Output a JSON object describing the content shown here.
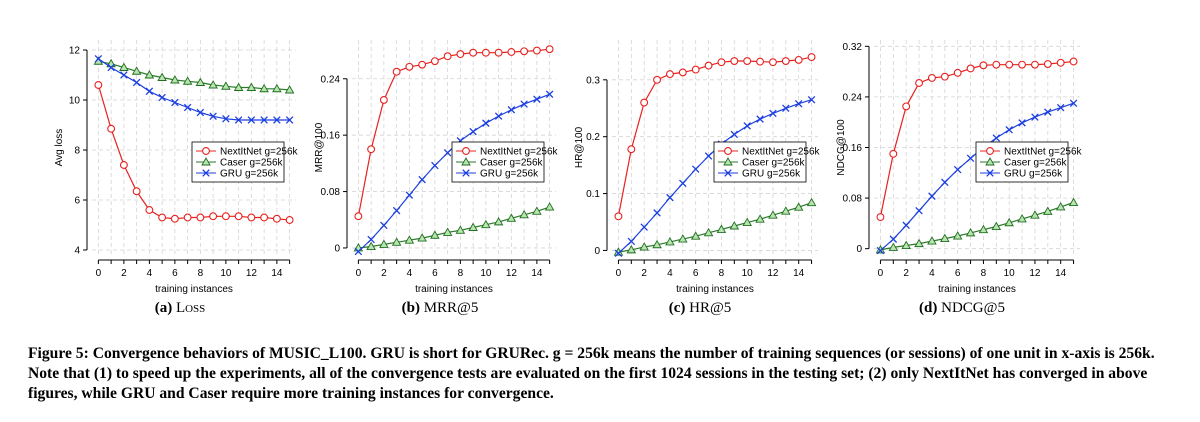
{
  "colors": {
    "nextitnet": "#e8211f",
    "caser": "#2f8a2f",
    "gru": "#1c3fe0"
  },
  "caption": {
    "label": "Figure 5:",
    "text": "Convergence behaviors of MUSIC_L100. GRU is short for GRURec. g = 256k means the number of training sequences (or sessions) of one unit in x-axis is 256k. Note that (1) to speed up the experiments, all of the convergence tests are evaluated on the first 1024 sessions in the testing set; (2) only NextItNet has converged in above figures, while GRU and Caser require more training instances for convergence."
  },
  "chart_data": [
    {
      "type": "line",
      "subcaption": {
        "label": "(a)",
        "name": "Loss"
      },
      "xlabel": "training instances",
      "ylabel": "Avg loss",
      "xlim": [
        -0.5,
        15.5
      ],
      "ylim": [
        3.8,
        12.4
      ],
      "xticks": [
        0,
        2,
        4,
        6,
        8,
        10,
        12,
        14
      ],
      "yticks": [
        4,
        6,
        8,
        10,
        12
      ],
      "x": [
        0,
        1,
        2,
        3,
        4,
        5,
        6,
        7,
        8,
        9,
        10,
        11,
        12,
        13,
        14,
        15
      ],
      "legend_position": "center-right",
      "series": [
        {
          "name": "NextItNet g=256k",
          "marker": "circle",
          "color": "#e8211f",
          "values": [
            10.6,
            8.85,
            7.4,
            6.35,
            5.6,
            5.3,
            5.25,
            5.3,
            5.3,
            5.35,
            5.35,
            5.35,
            5.3,
            5.3,
            5.25,
            5.2
          ]
        },
        {
          "name": "Caser g=256k",
          "marker": "triangle",
          "color": "#2f8a2f",
          "values": [
            11.55,
            11.45,
            11.3,
            11.15,
            11.0,
            10.9,
            10.8,
            10.75,
            10.7,
            10.6,
            10.55,
            10.5,
            10.5,
            10.45,
            10.45,
            10.4
          ]
        },
        {
          "name": "GRU  g=256k",
          "marker": "x",
          "color": "#1c3fe0",
          "values": [
            11.65,
            11.3,
            11.0,
            10.7,
            10.35,
            10.1,
            9.9,
            9.7,
            9.5,
            9.35,
            9.25,
            9.2,
            9.2,
            9.2,
            9.2,
            9.2
          ]
        }
      ]
    },
    {
      "type": "line",
      "subcaption": {
        "label": "(b)",
        "name": "MRR@5"
      },
      "xlabel": "training instances",
      "ylabel": "MRR@100",
      "xlim": [
        -0.5,
        15.5
      ],
      "ylim": [
        -0.01,
        0.295
      ],
      "xticks": [
        0,
        2,
        4,
        6,
        8,
        10,
        12,
        14
      ],
      "yticks": [
        0,
        0.08,
        0.16,
        0.24
      ],
      "ytick_labels": [
        "0",
        "0.08",
        "0.16",
        "0.24"
      ],
      "x": [
        0,
        1,
        2,
        3,
        4,
        5,
        6,
        7,
        8,
        9,
        10,
        11,
        12,
        13,
        14,
        15
      ],
      "legend_position": "center-right",
      "series": [
        {
          "name": "NextItNet g=256k",
          "marker": "circle",
          "color": "#e8211f",
          "values": [
            0.045,
            0.14,
            0.21,
            0.25,
            0.257,
            0.26,
            0.265,
            0.272,
            0.275,
            0.277,
            0.277,
            0.277,
            0.278,
            0.279,
            0.28,
            0.282
          ]
        },
        {
          "name": "Caser g=256k",
          "marker": "triangle",
          "color": "#2f8a2f",
          "values": [
            0.0,
            0.002,
            0.005,
            0.008,
            0.011,
            0.014,
            0.018,
            0.022,
            0.025,
            0.029,
            0.033,
            0.037,
            0.042,
            0.047,
            0.052,
            0.058
          ]
        },
        {
          "name": "GRU  g=256k",
          "marker": "x",
          "color": "#1c3fe0",
          "values": [
            -0.005,
            0.012,
            0.032,
            0.053,
            0.075,
            0.097,
            0.117,
            0.135,
            0.152,
            0.165,
            0.177,
            0.187,
            0.196,
            0.204,
            0.211,
            0.218
          ]
        }
      ]
    },
    {
      "type": "line",
      "subcaption": {
        "label": "(c)",
        "name": "HR@5"
      },
      "xlabel": "training instances",
      "ylabel": "HR@100",
      "xlim": [
        -0.5,
        15.5
      ],
      "ylim": [
        -0.008,
        0.37
      ],
      "xticks": [
        0,
        2,
        4,
        6,
        8,
        10,
        12,
        14
      ],
      "yticks": [
        0,
        0.1,
        0.2,
        0.3
      ],
      "ytick_labels": [
        "0",
        "0.1",
        "0.2",
        "0.3"
      ],
      "x": [
        0,
        1,
        2,
        3,
        4,
        5,
        6,
        7,
        8,
        9,
        10,
        11,
        12,
        13,
        14,
        15
      ],
      "legend_position": "center-right",
      "series": [
        {
          "name": "NextItNet g=256k",
          "marker": "circle",
          "color": "#e8211f",
          "values": [
            0.06,
            0.178,
            0.26,
            0.3,
            0.31,
            0.313,
            0.318,
            0.325,
            0.331,
            0.333,
            0.333,
            0.332,
            0.331,
            0.333,
            0.335,
            0.34
          ]
        },
        {
          "name": "Caser g=256k",
          "marker": "triangle",
          "color": "#2f8a2f",
          "values": [
            -0.003,
            0.001,
            0.006,
            0.01,
            0.015,
            0.02,
            0.025,
            0.031,
            0.037,
            0.043,
            0.049,
            0.055,
            0.062,
            0.069,
            0.076,
            0.084
          ]
        },
        {
          "name": "GRU  g=256k",
          "marker": "x",
          "color": "#1c3fe0",
          "values": [
            -0.005,
            0.016,
            0.041,
            0.066,
            0.093,
            0.118,
            0.143,
            0.166,
            0.187,
            0.204,
            0.219,
            0.231,
            0.241,
            0.25,
            0.258,
            0.265
          ]
        }
      ]
    },
    {
      "type": "line",
      "subcaption": {
        "label": "(d)",
        "name": "NDCG@5"
      },
      "xlabel": "training instances",
      "ylabel": "NDCG@100",
      "xlim": [
        -0.5,
        15.5
      ],
      "ylim": [
        -0.01,
        0.33
      ],
      "xticks": [
        0,
        2,
        4,
        6,
        8,
        10,
        12,
        14
      ],
      "yticks": [
        0,
        0.08,
        0.16,
        0.24,
        0.32
      ],
      "ytick_labels": [
        "0",
        "0.08",
        "0.16",
        "0.24",
        "0.32"
      ],
      "x": [
        0,
        1,
        2,
        3,
        4,
        5,
        6,
        7,
        8,
        9,
        10,
        11,
        12,
        13,
        14,
        15
      ],
      "legend_position": "center-right",
      "series": [
        {
          "name": "NextItNet g=256k",
          "marker": "circle",
          "color": "#e8211f",
          "values": [
            0.05,
            0.15,
            0.225,
            0.262,
            0.27,
            0.272,
            0.278,
            0.285,
            0.29,
            0.291,
            0.291,
            0.291,
            0.291,
            0.292,
            0.294,
            0.296
          ]
        },
        {
          "name": "Caser g=256k",
          "marker": "triangle",
          "color": "#2f8a2f",
          "values": [
            -0.002,
            0.002,
            0.005,
            0.008,
            0.012,
            0.016,
            0.02,
            0.025,
            0.03,
            0.035,
            0.041,
            0.047,
            0.053,
            0.059,
            0.066,
            0.073
          ]
        },
        {
          "name": "GRU  g=256k",
          "marker": "x",
          "color": "#1c3fe0",
          "values": [
            -0.003,
            0.015,
            0.037,
            0.06,
            0.083,
            0.105,
            0.125,
            0.143,
            0.16,
            0.175,
            0.188,
            0.199,
            0.208,
            0.216,
            0.223,
            0.23
          ]
        }
      ]
    }
  ]
}
